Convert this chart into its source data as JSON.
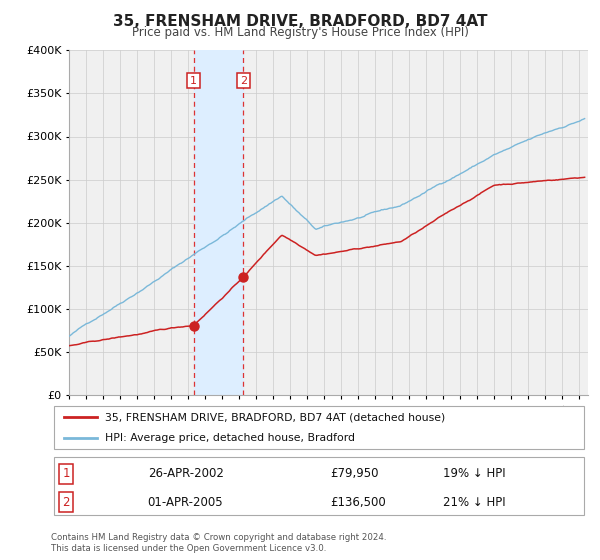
{
  "title": "35, FRENSHAM DRIVE, BRADFORD, BD7 4AT",
  "subtitle": "Price paid vs. HM Land Registry's House Price Index (HPI)",
  "legend_line1": "35, FRENSHAM DRIVE, BRADFORD, BD7 4AT (detached house)",
  "legend_line2": "HPI: Average price, detached house, Bradford",
  "footer1": "Contains HM Land Registry data © Crown copyright and database right 2024.",
  "footer2": "This data is licensed under the Open Government Licence v3.0.",
  "transaction1_date": "26-APR-2002",
  "transaction1_price": "£79,950",
  "transaction1_hpi": "19% ↓ HPI",
  "transaction2_date": "01-APR-2005",
  "transaction2_price": "£136,500",
  "transaction2_hpi": "21% ↓ HPI",
  "transaction1_year": 2002.32,
  "transaction2_year": 2005.25,
  "transaction1_value": 79950,
  "transaction2_value": 136500,
  "hpi_color": "#7ab8d9",
  "price_color": "#cc2222",
  "shading_color": "#ddeeff",
  "vline_color": "#dd3333",
  "grid_color": "#cccccc",
  "bg_color": "#f0f0f0",
  "ylim": [
    0,
    400000
  ],
  "xlim_start": 1995,
  "xlim_end": 2025.5,
  "yticks": [
    0,
    50000,
    100000,
    150000,
    200000,
    250000,
    300000,
    350000,
    400000
  ]
}
